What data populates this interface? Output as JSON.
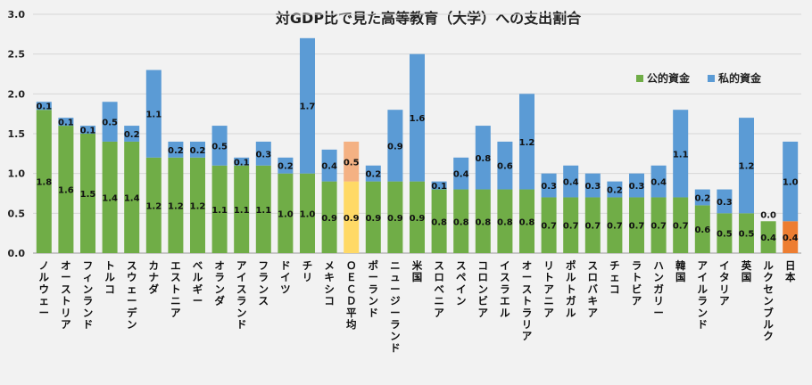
{
  "chart_data": {
    "type": "bar",
    "stacked": true,
    "title": "対GDP比で見た高等教育（大学）への支出割合",
    "xlabel": "",
    "ylabel": "",
    "ylim": [
      0,
      3.0
    ],
    "yticks": [
      "0.0",
      "0.5",
      "1.0",
      "1.5",
      "2.0",
      "2.5",
      "3.0"
    ],
    "grid": true,
    "legend_position": "top-right",
    "categories": [
      "ノルウェー",
      "オーストリア",
      "フィンランド",
      "トルコ",
      "スウェーデン",
      "カナダ",
      "エストニア",
      "ベルギー",
      "オランダ",
      "アイスランド",
      "フランス",
      "ドイツ",
      "チリ",
      "メキシコ",
      "ＯＥＣＤ平均",
      "ポーランド",
      "ニュージーランド",
      "米国",
      "スロベニア",
      "スペイン",
      "コロンビア",
      "イスラエル",
      "オーストラリア",
      "リトアニア",
      "ポルトガル",
      "スロバキア",
      "チェコ",
      "ラトビア",
      "ハンガリー",
      "韓国",
      "アイルランド",
      "イタリア",
      "英国",
      "ルクセンブルク",
      "日本"
    ],
    "series": [
      {
        "name": "公的資金",
        "color": "#70ad47",
        "values": [
          1.8,
          1.6,
          1.5,
          1.4,
          1.4,
          1.2,
          1.2,
          1.2,
          1.1,
          1.1,
          1.1,
          1.0,
          1.0,
          0.9,
          0.9,
          0.9,
          0.9,
          0.9,
          0.8,
          0.8,
          0.8,
          0.8,
          0.8,
          0.7,
          0.7,
          0.7,
          0.7,
          0.7,
          0.7,
          0.7,
          0.6,
          0.5,
          0.5,
          0.4,
          0.4
        ],
        "labels": [
          "1.8",
          "1.6",
          "1.5",
          "1.4",
          "1.4",
          "1.2",
          "1.2",
          "1.2",
          "1.1",
          "1.1",
          "1.1",
          "1.0",
          "1.0",
          "0.9",
          "0.9",
          "0.9",
          "0.9",
          "0.9",
          "0.8",
          "0.8",
          "0.8",
          "0.8",
          "0.8",
          "0.7",
          "0.7",
          "0.7",
          "0.7",
          "0.7",
          "0.7",
          "0.7",
          "0.6",
          "0.5",
          "0.5",
          "0.4",
          "0.4"
        ]
      },
      {
        "name": "私的資金",
        "color": "#5b9bd5",
        "values": [
          0.1,
          0.1,
          0.1,
          0.5,
          0.2,
          1.1,
          0.2,
          0.2,
          0.5,
          0.1,
          0.3,
          0.2,
          1.7,
          0.4,
          0.5,
          0.2,
          0.9,
          1.6,
          0.1,
          0.4,
          0.8,
          0.6,
          1.2,
          0.3,
          0.4,
          0.3,
          0.2,
          0.3,
          0.4,
          1.1,
          0.2,
          0.3,
          1.2,
          0.0,
          1.0
        ],
        "labels": [
          "0.1",
          "0.1",
          "0.1",
          "0.5",
          "0.2",
          "1.1",
          "0.2",
          "0.2",
          "0.5",
          "0.1",
          "0.3",
          "0.2",
          "1.7",
          "0.4",
          "0.5",
          "0.2",
          "0.9",
          "1.6",
          "0.1",
          "0.4",
          "0.8",
          "0.6",
          "1.2",
          "0.3",
          "0.4",
          "0.3",
          "0.2",
          "0.3",
          "0.4",
          "1.1",
          "0.2",
          "0.3",
          "1.2",
          "0.0",
          "1.0"
        ]
      }
    ],
    "highlight": {
      "ＯＥＣＤ平均": {
        "public_color": "#ffd966",
        "private_color": "#f4b183"
      },
      "日本": {
        "public_color": "#ed7d31",
        "private_color": "#5b9bd5"
      }
    }
  }
}
